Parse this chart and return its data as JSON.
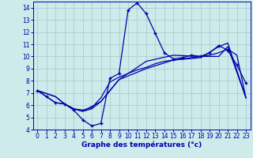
{
  "xlabel": "Graphe des températures (°c)",
  "background_color": "#ceeaea",
  "grid_color": "#aacfcf",
  "line_color": "#0000aa",
  "xlim": [
    -0.5,
    23.5
  ],
  "ylim": [
    4,
    14.5
  ],
  "yticks": [
    4,
    5,
    6,
    7,
    8,
    9,
    10,
    11,
    12,
    13,
    14
  ],
  "xticks": [
    0,
    1,
    2,
    3,
    4,
    5,
    6,
    7,
    8,
    9,
    10,
    11,
    12,
    13,
    14,
    15,
    16,
    17,
    18,
    19,
    20,
    21,
    22,
    23
  ],
  "curve1_x": [
    0,
    1,
    2,
    3,
    4,
    5,
    6,
    7,
    8,
    9,
    10,
    11,
    12,
    13,
    14,
    15,
    16,
    17,
    18,
    19,
    20,
    21,
    22,
    23
  ],
  "curve1_y": [
    7.2,
    6.7,
    6.2,
    6.1,
    5.6,
    4.8,
    4.3,
    4.5,
    8.2,
    8.6,
    13.8,
    14.4,
    13.5,
    11.9,
    10.3,
    9.8,
    9.9,
    10.1,
    10.0,
    10.3,
    10.9,
    10.5,
    9.3,
    7.8
  ],
  "curve2_x": [
    0,
    1,
    2,
    3,
    4,
    5,
    6,
    7,
    8,
    9,
    10,
    11,
    12,
    13,
    14,
    15,
    16,
    17,
    18,
    19,
    20,
    21,
    22,
    23
  ],
  "curve2_y": [
    7.2,
    6.7,
    6.2,
    6.1,
    5.7,
    5.6,
    5.8,
    6.6,
    7.9,
    8.3,
    8.6,
    8.9,
    9.1,
    9.4,
    9.6,
    9.7,
    9.8,
    9.9,
    10.0,
    10.1,
    10.3,
    10.6,
    10.1,
    6.6
  ],
  "curve3_x": [
    0,
    2,
    3,
    4,
    5,
    6,
    7,
    9,
    12,
    15,
    18,
    20,
    21,
    23
  ],
  "curve3_y": [
    7.2,
    6.7,
    6.1,
    5.7,
    5.5,
    5.7,
    6.3,
    8.1,
    9.0,
    9.7,
    9.9,
    10.8,
    11.1,
    6.6
  ],
  "curve4_x": [
    0,
    2,
    3,
    4,
    5,
    7,
    9,
    12,
    15,
    18,
    20,
    21,
    23
  ],
  "curve4_y": [
    7.2,
    6.7,
    6.1,
    5.7,
    5.5,
    6.3,
    8.1,
    9.6,
    10.1,
    10.0,
    10.0,
    10.8,
    6.6
  ]
}
